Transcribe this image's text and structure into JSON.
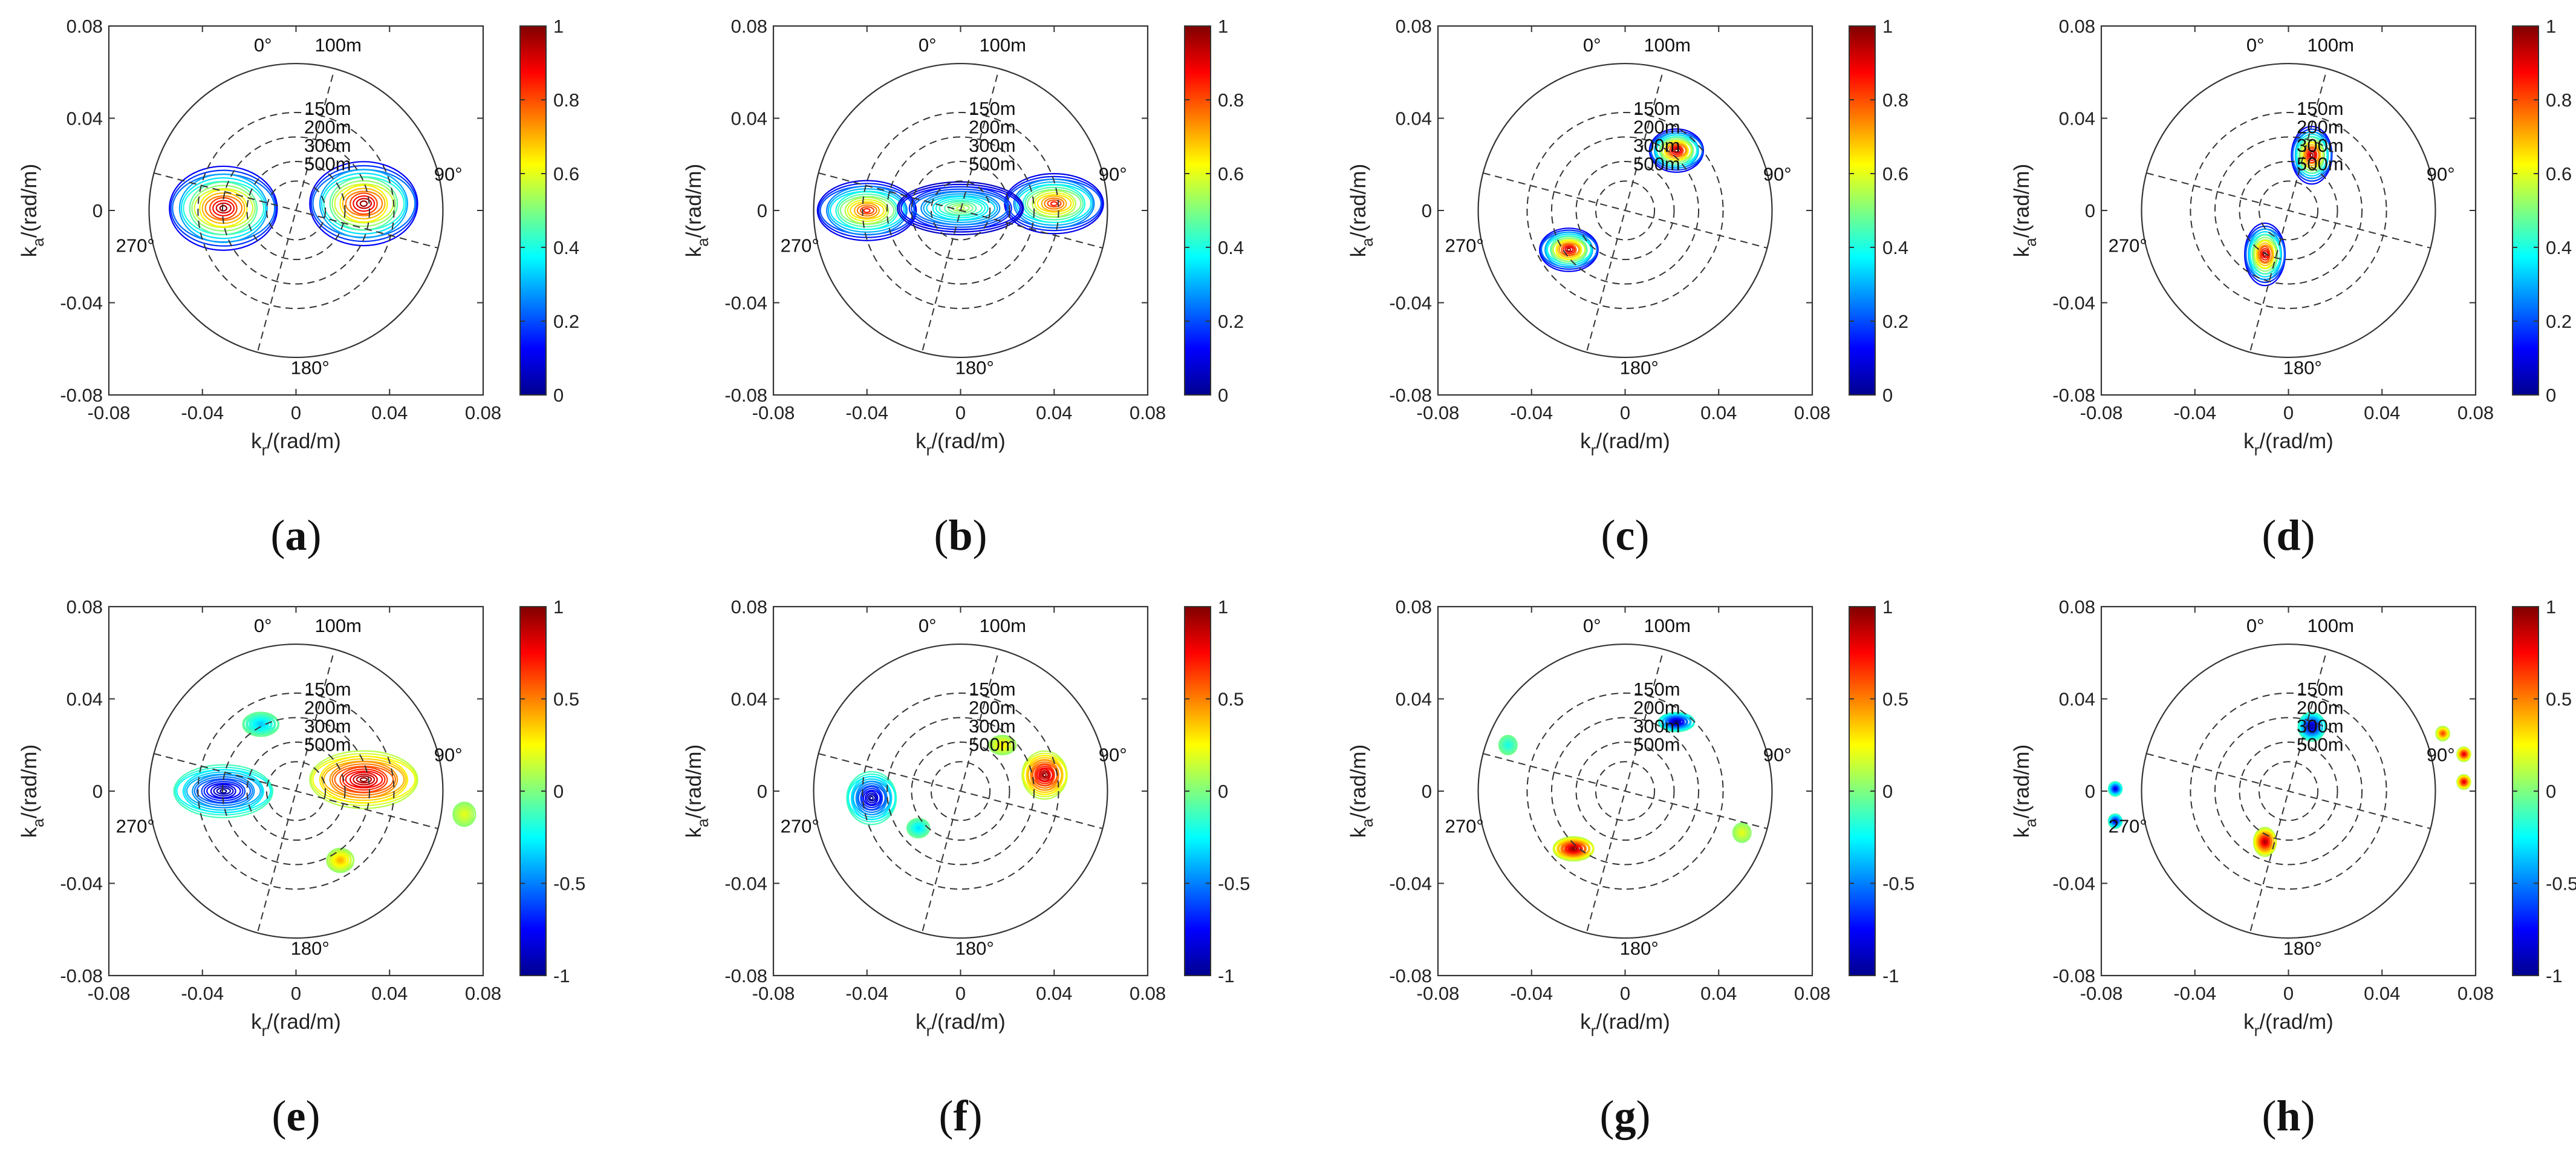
{
  "chart_data": [
    {
      "id": "a",
      "type": "contour",
      "label_letter": "a",
      "xlabel": "k",
      "xlabel_sub": "r",
      "xlabel_unit": "/(rad/m)",
      "ylabel": "k",
      "ylabel_sub": "a",
      "ylabel_unit": "/(rad/m)",
      "xlim": [
        -0.08,
        0.08
      ],
      "ylim": [
        -0.08,
        0.08
      ],
      "xticks": [
        "-0.08",
        "-0.04",
        "0",
        "0.04",
        "0.08"
      ],
      "yticks": [
        "0.08",
        "0.04",
        "0",
        "-0.04",
        "-0.08"
      ],
      "colorbar": {
        "range": [
          0,
          1
        ],
        "ticks": [
          "1",
          "0.8",
          "0.6",
          "0.4",
          "0.2",
          "0"
        ]
      },
      "polar_overlay": {
        "max_radius": 0.0628,
        "wavelength_rings_m": [
          150,
          200,
          300,
          500
        ],
        "ring_labels": [
          "100m",
          "150m",
          "200m",
          "300m",
          "500m"
        ],
        "angle_labels": [
          "0°",
          "90°",
          "180°",
          "270°"
        ],
        "rotation_deg": 15,
        "heading_line": [
          [
            0.022,
            0.08
          ],
          [
            -0.018,
            -0.08
          ]
        ]
      },
      "blobs": [
        {
          "x": -0.031,
          "y": 0.001,
          "sx": 0.024,
          "sy": 0.0175,
          "amp": 0.98
        },
        {
          "x": 0.029,
          "y": 0.003,
          "sx": 0.024,
          "sy": 0.0175,
          "amp": 0.98
        }
      ]
    },
    {
      "id": "b",
      "type": "contour",
      "label_letter": "b",
      "xlabel": "k",
      "xlabel_sub": "r",
      "xlabel_unit": "/(rad/m)",
      "ylabel": "k",
      "ylabel_sub": "a",
      "ylabel_unit": "/(rad/m)",
      "xlim": [
        -0.08,
        0.08
      ],
      "ylim": [
        -0.08,
        0.08
      ],
      "xticks": [
        "-0.08",
        "-0.04",
        "0",
        "0.04",
        "0.08"
      ],
      "yticks": [
        "0.08",
        "0.04",
        "0",
        "-0.04",
        "-0.08"
      ],
      "colorbar": {
        "range": [
          0,
          1
        ],
        "ticks": [
          "1",
          "0.8",
          "0.6",
          "0.4",
          "0.2",
          "0"
        ]
      },
      "polar_overlay": {
        "max_radius": 0.0628,
        "wavelength_rings_m": [
          150,
          200,
          300,
          500
        ],
        "ring_labels": [
          "100m",
          "150m",
          "200m",
          "300m",
          "500m"
        ],
        "angle_labels": [
          "0°",
          "90°",
          "180°",
          "270°"
        ],
        "rotation_deg": 15,
        "heading_line": [
          [
            0.022,
            0.08
          ],
          [
            -0.018,
            -0.08
          ]
        ]
      },
      "blobs": [
        {
          "x": -0.04,
          "y": 0.0,
          "sx": 0.022,
          "sy": 0.0125,
          "amp": 0.85
        },
        {
          "x": 0.04,
          "y": 0.003,
          "sx": 0.022,
          "sy": 0.0125,
          "amp": 0.85
        },
        {
          "x": 0.0,
          "y": 0.001,
          "sx": 0.028,
          "sy": 0.011,
          "amp": 0.55
        }
      ]
    },
    {
      "id": "c",
      "type": "contour",
      "label_letter": "c",
      "xlabel": "k",
      "xlabel_sub": "r",
      "xlabel_unit": "/(rad/m)",
      "ylabel": "k",
      "ylabel_sub": "a",
      "ylabel_unit": "/(rad/m)",
      "xlim": [
        -0.08,
        0.08
      ],
      "ylim": [
        -0.08,
        0.08
      ],
      "xticks": [
        "-0.08",
        "-0.04",
        "0",
        "0.04",
        "0.08"
      ],
      "yticks": [
        "0.08",
        "0.04",
        "0",
        "-0.04",
        "-0.08"
      ],
      "colorbar": {
        "range": [
          0,
          1
        ],
        "ticks": [
          "1",
          "0.8",
          "0.6",
          "0.4",
          "0.2",
          "0"
        ]
      },
      "polar_overlay": {
        "max_radius": 0.0628,
        "wavelength_rings_m": [
          150,
          200,
          300,
          500
        ],
        "ring_labels": [
          "100m",
          "150m",
          "200m",
          "300m",
          "500m"
        ],
        "angle_labels": [
          "0°",
          "90°",
          "180°",
          "270°"
        ],
        "rotation_deg": 15,
        "heading_line": [
          [
            0.022,
            0.08
          ],
          [
            -0.018,
            -0.08
          ]
        ]
      },
      "blobs": [
        {
          "x": 0.022,
          "y": 0.026,
          "sx": 0.012,
          "sy": 0.009,
          "amp": 0.98
        },
        {
          "x": -0.024,
          "y": -0.017,
          "sx": 0.013,
          "sy": 0.009,
          "amp": 0.96
        }
      ]
    },
    {
      "id": "d",
      "type": "contour",
      "label_letter": "d",
      "xlabel": "k",
      "xlabel_sub": "r",
      "xlabel_unit": "/(rad/m)",
      "ylabel": "k",
      "ylabel_sub": "a",
      "ylabel_unit": "/(rad/m)",
      "xlim": [
        -0.08,
        0.08
      ],
      "ylim": [
        -0.08,
        0.08
      ],
      "xticks": [
        "-0.08",
        "-0.04",
        "0",
        "0.04",
        "0.08"
      ],
      "yticks": [
        "0.08",
        "0.04",
        "0",
        "-0.04",
        "-0.08"
      ],
      "colorbar": {
        "range": [
          0,
          1
        ],
        "ticks": [
          "1",
          "0.8",
          "0.6",
          "0.4",
          "0.2",
          "0"
        ]
      },
      "polar_overlay": {
        "max_radius": 0.0628,
        "wavelength_rings_m": [
          150,
          200,
          300,
          500
        ],
        "ring_labels": [
          "100m",
          "150m",
          "200m",
          "300m",
          "500m"
        ],
        "angle_labels": [
          "0°",
          "90°",
          "180°",
          "270°"
        ],
        "rotation_deg": 15,
        "heading_line": [
          [
            0.022,
            0.08
          ],
          [
            -0.018,
            -0.08
          ]
        ]
      },
      "blobs": [
        {
          "x": 0.01,
          "y": 0.024,
          "sx": 0.009,
          "sy": 0.012,
          "amp": 0.98
        },
        {
          "x": -0.01,
          "y": -0.019,
          "sx": 0.009,
          "sy": 0.013,
          "amp": 0.96
        }
      ]
    },
    {
      "id": "e",
      "type": "contour",
      "label_letter": "e",
      "xlabel": "k",
      "xlabel_sub": "r",
      "xlabel_unit": "/(rad/m)",
      "ylabel": "k",
      "ylabel_sub": "a",
      "ylabel_unit": "/(rad/m)",
      "xlim": [
        -0.08,
        0.08
      ],
      "ylim": [
        -0.08,
        0.08
      ],
      "xticks": [
        "-0.08",
        "-0.04",
        "0",
        "0.04",
        "0.08"
      ],
      "yticks": [
        "0.08",
        "0.04",
        "0",
        "-0.04",
        "-0.08"
      ],
      "colorbar": {
        "range": [
          -1,
          1
        ],
        "ticks": [
          "1",
          "0.5",
          "0",
          "-0.5",
          "-1"
        ]
      },
      "polar_overlay": {
        "max_radius": 0.0628,
        "wavelength_rings_m": [
          150,
          200,
          300,
          500
        ],
        "ring_labels": [
          "100m",
          "150m",
          "200m",
          "300m",
          "500m"
        ],
        "angle_labels": [
          "0°",
          "90°",
          "180°",
          "270°"
        ],
        "rotation_deg": 15,
        "heading_line": [
          [
            0.022,
            0.08
          ],
          [
            -0.018,
            -0.08
          ]
        ]
      },
      "blobs": [
        {
          "x": -0.031,
          "y": 0.0,
          "sx": 0.022,
          "sy": 0.011,
          "amp": -0.96
        },
        {
          "x": 0.029,
          "y": 0.005,
          "sx": 0.024,
          "sy": 0.012,
          "amp": 0.96
        },
        {
          "x": -0.015,
          "y": 0.029,
          "sx": 0.008,
          "sy": 0.005,
          "amp": -0.35
        },
        {
          "x": 0.019,
          "y": -0.03,
          "sx": 0.006,
          "sy": 0.005,
          "amp": 0.4
        },
        {
          "x": 0.072,
          "y": -0.01,
          "sx": 0.005,
          "sy": 0.005,
          "amp": 0.2
        }
      ]
    },
    {
      "id": "f",
      "type": "contour",
      "label_letter": "f",
      "xlabel": "k",
      "xlabel_sub": "r",
      "xlabel_unit": "/(rad/m)",
      "ylabel": "k",
      "ylabel_sub": "a",
      "ylabel_unit": "/(rad/m)",
      "xlim": [
        -0.08,
        0.08
      ],
      "ylim": [
        -0.08,
        0.08
      ],
      "xticks": [
        "-0.08",
        "-0.04",
        "0",
        "0.04",
        "0.08"
      ],
      "yticks": [
        "0.08",
        "0.04",
        "0",
        "-0.04",
        "-0.08"
      ],
      "colorbar": {
        "range": [
          -1,
          1
        ],
        "ticks": [
          "1",
          "0.5",
          "0",
          "-0.5",
          "-1"
        ]
      },
      "polar_overlay": {
        "max_radius": 0.0628,
        "wavelength_rings_m": [
          150,
          200,
          300,
          500
        ],
        "ring_labels": [
          "100m",
          "150m",
          "200m",
          "300m",
          "500m"
        ],
        "angle_labels": [
          "0°",
          "90°",
          "180°",
          "270°"
        ],
        "rotation_deg": 15,
        "heading_line": [
          [
            0.022,
            0.08
          ],
          [
            -0.018,
            -0.08
          ]
        ]
      },
      "blobs": [
        {
          "x": -0.038,
          "y": -0.003,
          "sx": 0.011,
          "sy": 0.011,
          "amp": -0.96
        },
        {
          "x": 0.036,
          "y": 0.007,
          "sx": 0.01,
          "sy": 0.01,
          "amp": 0.96
        },
        {
          "x": 0.018,
          "y": 0.02,
          "sx": 0.006,
          "sy": 0.004,
          "amp": 0.3
        },
        {
          "x": -0.018,
          "y": -0.016,
          "sx": 0.005,
          "sy": 0.004,
          "amp": -0.3
        }
      ]
    },
    {
      "id": "g",
      "type": "contour",
      "label_letter": "g",
      "xlabel": "k",
      "xlabel_sub": "r",
      "xlabel_unit": "/(rad/m)",
      "ylabel": "k",
      "ylabel_sub": "a",
      "ylabel_unit": "/(rad/m)",
      "xlim": [
        -0.08,
        0.08
      ],
      "ylim": [
        -0.08,
        0.08
      ],
      "xticks": [
        "-0.08",
        "-0.04",
        "0",
        "0.04",
        "0.08"
      ],
      "yticks": [
        "0.08",
        "0.04",
        "0",
        "-0.04",
        "-0.08"
      ],
      "colorbar": {
        "range": [
          -1,
          1
        ],
        "ticks": [
          "1",
          "0.5",
          "0",
          "-0.5",
          "-1"
        ]
      },
      "polar_overlay": {
        "max_radius": 0.0628,
        "wavelength_rings_m": [
          150,
          200,
          300,
          500
        ],
        "ring_labels": [
          "100m",
          "150m",
          "200m",
          "300m",
          "500m"
        ],
        "angle_labels": [
          "0°",
          "90°",
          "180°",
          "270°"
        ],
        "rotation_deg": 15,
        "heading_line": [
          [
            0.022,
            0.08
          ],
          [
            -0.018,
            -0.08
          ]
        ]
      },
      "blobs": [
        {
          "x": 0.022,
          "y": 0.03,
          "sx": 0.008,
          "sy": 0.004,
          "amp": -0.96
        },
        {
          "x": -0.022,
          "y": -0.025,
          "sx": 0.009,
          "sy": 0.005,
          "amp": 0.96
        },
        {
          "x": -0.05,
          "y": 0.02,
          "sx": 0.004,
          "sy": 0.004,
          "amp": -0.2
        },
        {
          "x": 0.05,
          "y": -0.018,
          "sx": 0.004,
          "sy": 0.004,
          "amp": 0.2
        }
      ]
    },
    {
      "id": "h",
      "type": "contour",
      "label_letter": "h",
      "xlabel": "k",
      "xlabel_sub": "r",
      "xlabel_unit": "/(rad/m)",
      "ylabel": "k",
      "ylabel_sub": "a",
      "ylabel_unit": "/(rad/m)",
      "xlim": [
        -0.08,
        0.08
      ],
      "ylim": [
        -0.08,
        0.08
      ],
      "xticks": [
        "-0.08",
        "-0.04",
        "0",
        "0.04",
        "0.08"
      ],
      "yticks": [
        "0.08",
        "0.04",
        "0",
        "-0.04",
        "-0.08"
      ],
      "colorbar": {
        "range": [
          -1,
          1
        ],
        "ticks": [
          "1",
          "0.5",
          "0",
          "-0.5",
          "-1"
        ]
      },
      "polar_overlay": {
        "max_radius": 0.0628,
        "wavelength_rings_m": [
          150,
          200,
          300,
          500
        ],
        "ring_labels": [
          "100m",
          "150m",
          "200m",
          "300m",
          "500m"
        ],
        "angle_labels": [
          "0°",
          "90°",
          "180°",
          "270°"
        ],
        "rotation_deg": 15,
        "heading_line": [
          [
            0.022,
            0.08
          ],
          [
            -0.018,
            -0.08
          ]
        ]
      },
      "blobs": [
        {
          "x": 0.01,
          "y": 0.028,
          "sx": 0.006,
          "sy": 0.006,
          "amp": -0.9
        },
        {
          "x": -0.01,
          "y": -0.022,
          "sx": 0.005,
          "sy": 0.006,
          "amp": 0.9
        },
        {
          "x": -0.074,
          "y": 0.001,
          "sx": 0.003,
          "sy": 0.003,
          "amp": -0.8
        },
        {
          "x": -0.074,
          "y": -0.013,
          "sx": 0.003,
          "sy": 0.003,
          "amp": -0.8
        },
        {
          "x": 0.075,
          "y": 0.016,
          "sx": 0.003,
          "sy": 0.003,
          "amp": 0.8
        },
        {
          "x": 0.075,
          "y": 0.004,
          "sx": 0.003,
          "sy": 0.003,
          "amp": 0.8
        },
        {
          "x": 0.066,
          "y": 0.025,
          "sx": 0.003,
          "sy": 0.003,
          "amp": 0.6
        }
      ]
    }
  ]
}
